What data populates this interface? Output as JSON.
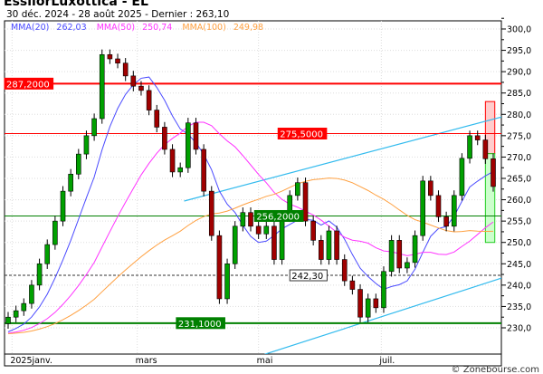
{
  "header": {
    "title": "EssilorLuxottica - EL",
    "subtitle": "30 déc. 2024 - 28 août 2025 - Dernier : 263,10"
  },
  "legend": [
    {
      "label": "MMA(20)",
      "value": "262,03",
      "color": "#4a4aff",
      "period": 20
    },
    {
      "label": "MMA(50)",
      "value": "250,74",
      "color": "#ff33ff",
      "period": 50
    },
    {
      "label": "MMA(100)",
      "value": "249,98",
      "color": "#ffa040",
      "period": 100
    }
  ],
  "footer": "© Zonebourse.com",
  "chart_data": {
    "type": "candlestick",
    "title": "EssilorLuxottica - EL",
    "ylim": [
      225,
      302
    ],
    "yticks": [
      "230,0",
      "235,0",
      "240,0",
      "245,0",
      "250,0",
      "255,0",
      "260,0",
      "265,0",
      "270,0",
      "275,0",
      "280,0",
      "285,0",
      "290,0",
      "295,0",
      "300,0"
    ],
    "ytick_values": [
      230,
      235,
      240,
      245,
      250,
      255,
      260,
      265,
      270,
      275,
      280,
      285,
      290,
      295,
      300
    ],
    "xticks": [
      {
        "label": "2025janv.",
        "index": 0.5
      },
      {
        "label": "mars",
        "index": 16.5
      },
      {
        "label": "mai",
        "index": 32
      },
      {
        "label": "juil.",
        "index": 47.7
      }
    ],
    "grid": true,
    "closes": [
      232.5,
      234,
      235.7,
      240,
      245,
      249.5,
      255,
      262,
      266,
      270.7,
      275,
      279,
      294,
      293,
      292,
      289,
      286.6,
      285.6,
      281,
      277,
      271.8,
      266.5,
      267.5,
      278,
      271.8,
      262,
      251.6,
      236.8,
      245,
      253.8,
      257,
      253.8,
      252,
      253.8,
      246,
      256,
      261,
      264,
      255,
      250.5,
      246,
      252.7,
      246,
      241,
      239,
      232.5,
      236.8,
      234.7,
      243.2,
      250.5,
      244,
      245.3,
      251.6,
      264.4,
      261,
      256,
      253.8,
      261,
      269.7,
      275,
      274,
      269.6,
      263.1
    ],
    "colors": {
      "up": "#00a000",
      "down": "#a00000"
    },
    "levels": [
      {
        "label": "287,2000",
        "value": 287.2,
        "color": "#ff0000",
        "width": 2,
        "label_index": 0,
        "style": "filled"
      },
      {
        "label": "275,5000",
        "value": 275.5,
        "color": "#ff0000",
        "width": 1,
        "label_index": 34.5,
        "style": "filled"
      },
      {
        "label": "256,2000",
        "value": 256.2,
        "color": "#008000",
        "width": 1,
        "label_index": 31.5,
        "style": "filled"
      },
      {
        "label": "231,1000",
        "value": 231.1,
        "color": "#008000",
        "width": 2,
        "label_index": 21.5,
        "style": "filled"
      },
      {
        "label": "242,30",
        "value": 242.3,
        "color": "#333333",
        "width": 1,
        "label_index": 36,
        "style": "dashed"
      }
    ],
    "channel": [
      {
        "from": [
          22.5,
          259.7
        ],
        "to": [
          63.5,
          279.6
        ],
        "color": "#33bbee"
      },
      {
        "from": [
          32.8,
          223.8
        ],
        "to": [
          63.5,
          241.9
        ],
        "color": "#33bbee"
      }
    ],
    "target_boxes": [
      {
        "from_index": 61,
        "to_index": 62.2,
        "top": 283,
        "bottom": 270.8,
        "color": "#ff0000",
        "fill": "#ffcccc"
      },
      {
        "from_index": 61,
        "to_index": 62.2,
        "top": 270.8,
        "bottom": 250,
        "color": "#22cc22",
        "fill": "#ccffcc"
      }
    ]
  }
}
